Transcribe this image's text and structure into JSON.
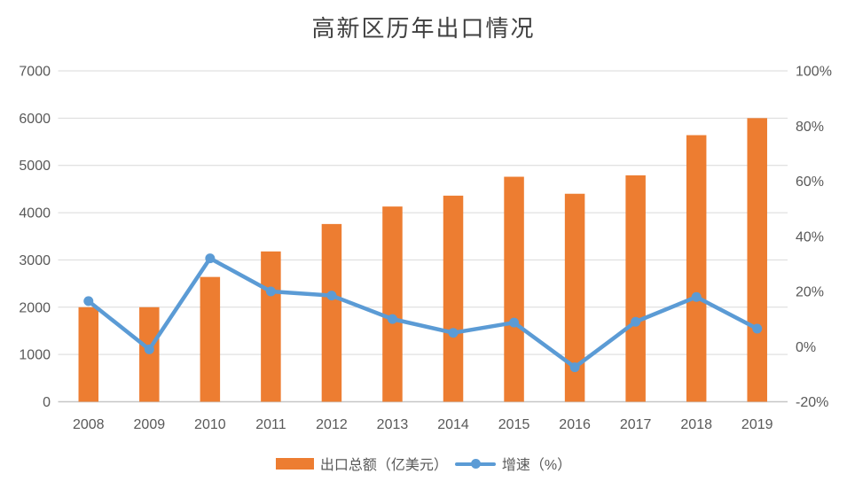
{
  "title": "高新区历年出口情况",
  "colors": {
    "bar": "#ED7D31",
    "line": "#5B9BD5",
    "grid": "#D9D9D9",
    "axis_line": "#C6C6C6",
    "tick_label": "#595959",
    "title": "#404040",
    "background": "#FFFFFF"
  },
  "chart_data": {
    "type": "combo-bar-line",
    "title": "高新区历年出口情况",
    "categories": [
      "2008",
      "2009",
      "2010",
      "2011",
      "2012",
      "2013",
      "2014",
      "2015",
      "2016",
      "2017",
      "2018",
      "2019"
    ],
    "series": [
      {
        "name": "出口总额（亿美元）",
        "type": "bar",
        "axis": "left",
        "color": "#ED7D31",
        "values": [
          2000,
          2000,
          2640,
          3180,
          3760,
          4130,
          4360,
          4760,
          4400,
          4790,
          5640,
          6000
        ]
      },
      {
        "name": "增速（%）",
        "type": "line",
        "axis": "right",
        "color": "#5B9BD5",
        "values": [
          16.5,
          -1,
          32,
          20,
          18.5,
          10,
          5,
          8.7,
          -7.5,
          9,
          18,
          6.5
        ]
      }
    ],
    "left_axis": {
      "min": 0,
      "max": 7000,
      "step": 1000,
      "tick_labels": [
        "0",
        "1000",
        "2000",
        "3000",
        "4000",
        "5000",
        "6000",
        "7000"
      ]
    },
    "right_axis": {
      "min": -20,
      "max": 100,
      "step": 20,
      "tick_labels": [
        "-20%",
        "0%",
        "20%",
        "40%",
        "60%",
        "80%",
        "100%"
      ]
    },
    "grid": true,
    "legend_position": "bottom"
  }
}
